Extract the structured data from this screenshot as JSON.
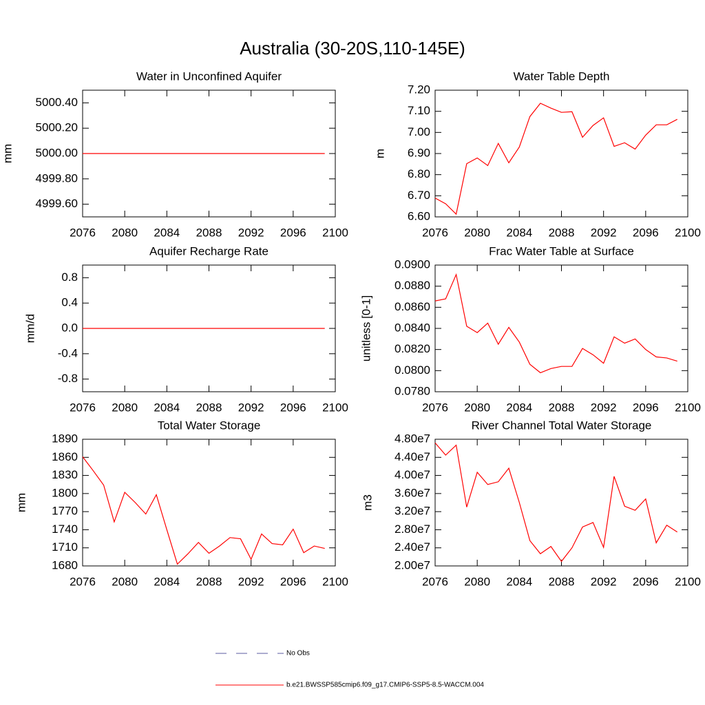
{
  "title": "Australia (30-20S,110-145E)",
  "legend": [
    {
      "name": "No Obs",
      "color": "#5a5aa0",
      "dashed": true
    },
    {
      "name": "b.e21.BWSSP585cmip6.f09_g17.CMIP6-SSP5-8.5-WACCM.004",
      "color": "#ff0000",
      "dashed": false
    }
  ],
  "chart_data": [
    {
      "type": "line",
      "title": "Water in Unconfined Aquifer",
      "y_label": "mm",
      "color": "#ff0000",
      "x": [
        2076,
        2077,
        2078,
        2079,
        2080,
        2081,
        2082,
        2083,
        2084,
        2085,
        2086,
        2087,
        2088,
        2089,
        2090,
        2091,
        2092,
        2093,
        2094,
        2095,
        2096,
        2097,
        2098,
        2099
      ],
      "values": [
        5000,
        5000,
        5000,
        5000,
        5000,
        5000,
        5000,
        5000,
        5000,
        5000,
        5000,
        5000,
        5000,
        5000,
        5000,
        5000,
        5000,
        5000,
        5000,
        5000,
        5000,
        5000,
        5000,
        5000
      ],
      "xlim": [
        2076,
        2100
      ],
      "xticks": [
        2076,
        2080,
        2084,
        2088,
        2092,
        2096,
        2100
      ],
      "ylim": [
        4999.5,
        5000.5
      ],
      "yticks": [
        {
          "value": 4999.6,
          "label": "4999.60"
        },
        {
          "value": 4999.8,
          "label": "4999.80"
        },
        {
          "value": 5000.0,
          "label": "5000.00"
        },
        {
          "value": 5000.2,
          "label": "5000.20"
        },
        {
          "value": 5000.4,
          "label": "5000.40"
        }
      ]
    },
    {
      "type": "line",
      "title": "Water Table Depth",
      "y_label": "m",
      "color": "#ff0000",
      "x": [
        2076,
        2077,
        2078,
        2079,
        2080,
        2081,
        2082,
        2083,
        2084,
        2085,
        2086,
        2087,
        2088,
        2089,
        2090,
        2091,
        2092,
        2093,
        2094,
        2095,
        2096,
        2097,
        2098,
        2099
      ],
      "values": [
        6.689,
        6.662,
        6.613,
        6.852,
        6.879,
        6.843,
        6.948,
        6.856,
        6.931,
        7.075,
        7.138,
        7.115,
        7.095,
        7.098,
        6.977,
        7.033,
        7.069,
        6.934,
        6.951,
        6.921,
        6.987,
        7.036,
        7.036,
        7.062
      ],
      "xlim": [
        2076,
        2100
      ],
      "xticks": [
        2076,
        2080,
        2084,
        2088,
        2092,
        2096,
        2100
      ],
      "ylim": [
        6.6,
        7.2
      ],
      "yticks": [
        {
          "value": 6.6,
          "label": "6.60"
        },
        {
          "value": 6.7,
          "label": "6.70"
        },
        {
          "value": 6.8,
          "label": "6.80"
        },
        {
          "value": 6.9,
          "label": "6.90"
        },
        {
          "value": 7.0,
          "label": "7.00"
        },
        {
          "value": 7.1,
          "label": "7.10"
        },
        {
          "value": 7.2,
          "label": "7.20"
        }
      ]
    },
    {
      "type": "line",
      "title": "Aquifer Recharge Rate",
      "y_label": "mm/d",
      "color": "#ff0000",
      "x": [
        2076,
        2077,
        2078,
        2079,
        2080,
        2081,
        2082,
        2083,
        2084,
        2085,
        2086,
        2087,
        2088,
        2089,
        2090,
        2091,
        2092,
        2093,
        2094,
        2095,
        2096,
        2097,
        2098,
        2099
      ],
      "values": [
        0,
        0,
        0,
        0,
        0,
        0,
        0,
        0,
        0,
        0,
        0,
        0,
        0,
        0,
        0,
        0,
        0,
        0,
        0,
        0,
        0,
        0,
        0,
        0
      ],
      "xlim": [
        2076,
        2100
      ],
      "xticks": [
        2076,
        2080,
        2084,
        2088,
        2092,
        2096,
        2100
      ],
      "ylim": [
        -1,
        1
      ],
      "yticks": [
        -0.8,
        -0.4,
        {
          "value": 0,
          "label": "0.0"
        },
        0.4,
        0.8
      ]
    },
    {
      "type": "line",
      "title": "Frac Water Table at Surface",
      "y_label": "unitless [0-1]",
      "color": "#ff0000",
      "x": [
        2076,
        2077,
        2078,
        2079,
        2080,
        2081,
        2082,
        2083,
        2084,
        2085,
        2086,
        2087,
        2088,
        2089,
        2090,
        2091,
        2092,
        2093,
        2094,
        2095,
        2096,
        2097,
        2098,
        2099
      ],
      "values": [
        0.0866,
        0.0868,
        0.0891,
        0.0842,
        0.0836,
        0.0845,
        0.0825,
        0.0841,
        0.0827,
        0.0806,
        0.0798,
        0.0802,
        0.0804,
        0.0804,
        0.0821,
        0.0815,
        0.0807,
        0.0832,
        0.0826,
        0.083,
        0.082,
        0.0813,
        0.0812,
        0.0809
      ],
      "xlim": [
        2076,
        2100
      ],
      "xticks": [
        2076,
        2080,
        2084,
        2088,
        2092,
        2096,
        2100
      ],
      "ylim": [
        0.078,
        0.09
      ],
      "yticks": [
        {
          "value": 0.078,
          "label": "0.0780"
        },
        {
          "value": 0.08,
          "label": "0.0800"
        },
        {
          "value": 0.082,
          "label": "0.0820"
        },
        {
          "value": 0.084,
          "label": "0.0840"
        },
        {
          "value": 0.086,
          "label": "0.0860"
        },
        {
          "value": 0.088,
          "label": "0.0880"
        },
        {
          "value": 0.09,
          "label": "0.0900"
        }
      ]
    },
    {
      "type": "line",
      "title": "Total Water Storage",
      "y_label": "mm",
      "color": "#ff0000",
      "x": [
        2076,
        2077,
        2078,
        2079,
        2080,
        2081,
        2082,
        2083,
        2084,
        2085,
        2086,
        2087,
        2088,
        2089,
        2090,
        2091,
        2092,
        2093,
        2094,
        2095,
        2096,
        2097,
        2098,
        2099
      ],
      "values": [
        1861,
        1838,
        1814,
        1753,
        1802,
        1785,
        1766,
        1798,
        1740,
        1683,
        1700,
        1719,
        1701,
        1713,
        1727,
        1725,
        1691,
        1733,
        1717,
        1715,
        1741,
        1702,
        1713,
        1709
      ],
      "xlim": [
        2076,
        2100
      ],
      "xticks": [
        2076,
        2080,
        2084,
        2088,
        2092,
        2096,
        2100
      ],
      "ylim": [
        1680,
        1890
      ],
      "yticks": [
        1680,
        1710,
        1740,
        1770,
        1800,
        1830,
        1860,
        1890
      ]
    },
    {
      "type": "line",
      "title": "River Channel Total Water Storage",
      "y_label": "m3",
      "color": "#ff0000",
      "x": [
        2076,
        2077,
        2078,
        2079,
        2080,
        2081,
        2082,
        2083,
        2084,
        2085,
        2086,
        2087,
        2088,
        2089,
        2090,
        2091,
        2092,
        2093,
        2094,
        2095,
        2096,
        2097,
        2098,
        2099
      ],
      "values": [
        47200000,
        44500000,
        46700000,
        33000000,
        40700000,
        38000000,
        38600000,
        41600000,
        34000000,
        25600000,
        22700000,
        24300000,
        21000000,
        24000000,
        28600000,
        29600000,
        24100000,
        39800000,
        33200000,
        32300000,
        34800000,
        25100000,
        29000000,
        27500000
      ],
      "xlim": [
        2076,
        2100
      ],
      "xticks": [
        2076,
        2080,
        2084,
        2088,
        2092,
        2096,
        2100
      ],
      "ylim": [
        20000000,
        48000000
      ],
      "yticks": [
        {
          "value": 20000000,
          "label": "2.00e7"
        },
        {
          "value": 24000000,
          "label": "2.40e7"
        },
        {
          "value": 28000000,
          "label": "2.80e7"
        },
        {
          "value": 32000000,
          "label": "3.20e7"
        },
        {
          "value": 36000000,
          "label": "3.60e7"
        },
        {
          "value": 40000000,
          "label": "4.00e7"
        },
        {
          "value": 44000000,
          "label": "4.40e7"
        },
        {
          "value": 48000000,
          "label": "4.80e7"
        }
      ]
    }
  ]
}
